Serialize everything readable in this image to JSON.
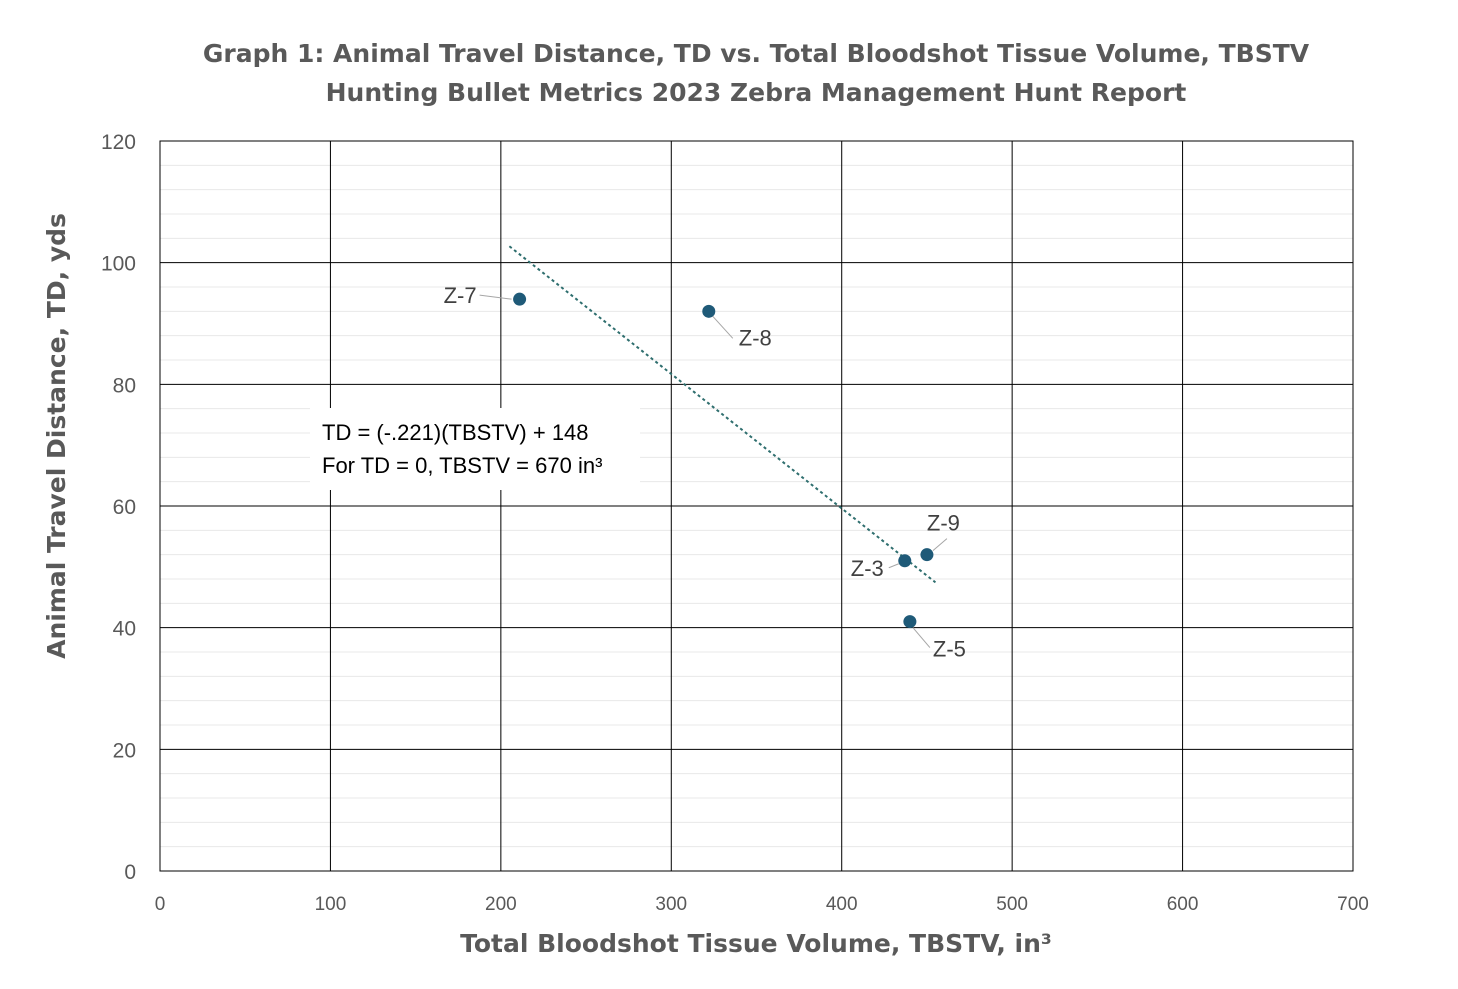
{
  "colors": {
    "marker": "#1f5a78",
    "trendline": "#2e6e6e",
    "major_grid": "#000000",
    "minor_grid": "#e8e8e8",
    "text": "#595959"
  },
  "chart_data": {
    "type": "scatter",
    "title": "Graph 1: Animal Travel Distance, TD vs. Total Bloodshot Tissue Volume, TBSTV",
    "subtitle": "Hunting Bullet Metrics 2023 Zebra Management Hunt Report",
    "xlabel": "Total Bloodshot Tissue Volume, TBSTV, in³",
    "ylabel": "Animal Travel Distance, TD, yds",
    "xlim": [
      0,
      700
    ],
    "ylim": [
      0,
      120
    ],
    "x_ticks": [
      "0",
      "100",
      "200",
      "300",
      "400",
      "500",
      "600",
      "700"
    ],
    "y_ticks": [
      "0",
      "20",
      "40",
      "60",
      "80",
      "100",
      "120"
    ],
    "grid": true,
    "legend": "none",
    "points": [
      {
        "label": "Z-7",
        "x": 211,
        "y": 94
      },
      {
        "label": "Z-8",
        "x": 322,
        "y": 92
      },
      {
        "label": "Z-3",
        "x": 437,
        "y": 51
      },
      {
        "label": "Z-9",
        "x": 450,
        "y": 52
      },
      {
        "label": "Z-5",
        "x": 440,
        "y": 41
      }
    ],
    "trendline": {
      "type": "linear",
      "style": "dotted",
      "x_range": [
        205,
        455
      ],
      "slope": -0.221,
      "intercept": 148
    },
    "annotation": {
      "line1": "TD = (-.221)(TBSTV) + 148",
      "line2": "For TD = 0, TBSTV = 670 in³"
    }
  }
}
